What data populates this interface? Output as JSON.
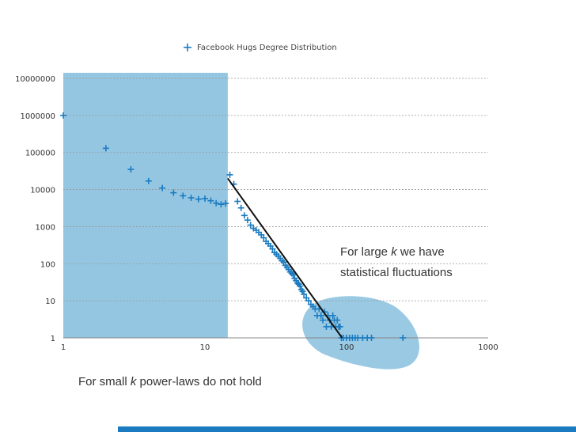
{
  "chart_data": {
    "type": "scatter",
    "x_scale": "log",
    "y_scale": "log",
    "xlim": [
      1,
      1000
    ],
    "ylim": [
      1,
      10000000
    ],
    "x_ticks": [
      "1",
      "10",
      "100",
      "1000"
    ],
    "y_ticks": [
      "1",
      "10",
      "100",
      "1000",
      "10000",
      "100000",
      "1000000",
      "10000000"
    ],
    "grid": "horizontal dotted",
    "legend": {
      "label": "Facebook Hugs Degree Distribution",
      "position": "top-center"
    },
    "marker_color": "#1a7bc0",
    "highlight_color": "#8ec3e0",
    "fit_line_color": "#111111",
    "highlight_region_x": [
      1,
      14.5
    ],
    "fit_line": {
      "x": [
        14.5,
        93
      ],
      "y": [
        20000,
        1
      ]
    },
    "series": [
      {
        "name": "Facebook Hugs Degree Distribution",
        "x": [
          1,
          2,
          3,
          4,
          5,
          6,
          7,
          8,
          9,
          10,
          11,
          12,
          13,
          14,
          15,
          16,
          17,
          18,
          19,
          20,
          21,
          22,
          23,
          24,
          25,
          26,
          27,
          28,
          29,
          30,
          31,
          32,
          33,
          34,
          35,
          36,
          37,
          38,
          39,
          40,
          41,
          42,
          43,
          44,
          45,
          46,
          47,
          48,
          49,
          50,
          52,
          54,
          56,
          58,
          60,
          62,
          64,
          66,
          68,
          70,
          72,
          74,
          76,
          78,
          80,
          82,
          84,
          86,
          88,
          90,
          92,
          95,
          100,
          105,
          110,
          115,
          120,
          130,
          140,
          150,
          250
        ],
        "y": [
          1000000,
          130000,
          35000,
          17000,
          11000,
          8200,
          6800,
          6000,
          5500,
          5700,
          5000,
          4300,
          4000,
          4200,
          25000,
          14000,
          4800,
          3200,
          2000,
          1500,
          1100,
          900,
          800,
          700,
          600,
          500,
          400,
          350,
          300,
          250,
          200,
          180,
          160,
          140,
          120,
          110,
          90,
          80,
          70,
          60,
          55,
          50,
          40,
          35,
          30,
          28,
          25,
          20,
          18,
          15,
          12,
          10,
          8,
          7,
          6,
          4,
          6,
          4,
          3,
          5,
          2,
          4,
          3,
          2,
          4,
          3,
          2,
          3,
          2,
          2,
          1,
          1,
          1,
          1,
          1,
          1,
          1,
          1,
          1,
          1,
          1
        ]
      }
    ]
  },
  "annotations": {
    "large_k_line1_pre": "For large ",
    "large_k_var": "k",
    "large_k_line1_post": " we have",
    "large_k_line2": "statistical fluctuations",
    "small_k_pre": "For small ",
    "small_k_var": "k",
    "small_k_post": " power-laws do not hold"
  }
}
